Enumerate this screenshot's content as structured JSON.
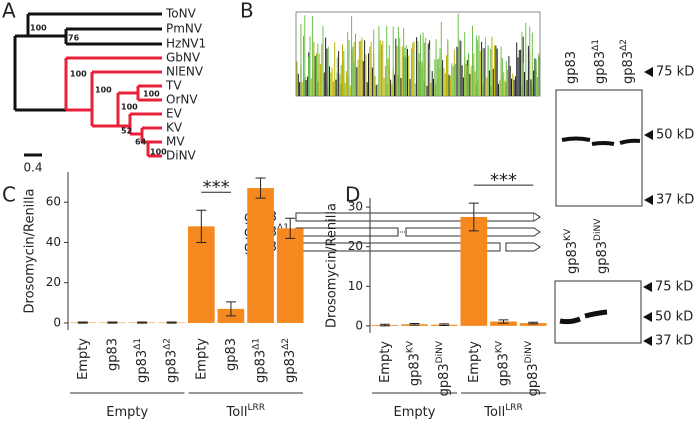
{
  "panels": {
    "a": "A",
    "b": "B",
    "c": "C",
    "d": "D"
  },
  "tree": {
    "taxa": [
      "ToNV",
      "PmNV",
      "HzNV1",
      "GbNV",
      "NlENV",
      "TV",
      "OrNV",
      "EV",
      "KV",
      "MV",
      "DiNV"
    ],
    "bootstrap": [
      "100",
      "76",
      "100",
      "100",
      "100",
      "100",
      "52",
      "64",
      "100"
    ],
    "scale": "0.4"
  },
  "alignment": {
    "constructs": [
      {
        "text": "gp83"
      },
      {
        "text": "gp83",
        "sup": "Δ1"
      },
      {
        "text": "gp83",
        "sup": "Δ2"
      }
    ]
  },
  "blot_b": {
    "lanes": [
      {
        "text": "gp83"
      },
      {
        "text": "gp83",
        "sup": "Δ1"
      },
      {
        "text": "gp83",
        "sup": "Δ2"
      }
    ],
    "markers": [
      "75 kD",
      "50 kD",
      "37 kD"
    ]
  },
  "blot_d": {
    "lanes": [
      {
        "text": "gp83",
        "sup": "KV"
      },
      {
        "text": "gp83",
        "sup": "DiNV"
      }
    ],
    "markers": [
      "75 kD",
      "50 kD",
      "37 kD"
    ]
  },
  "chart_data": [
    {
      "type": "bar",
      "ylabel": "Drosomycin/Renilla",
      "color": "#f5891f",
      "categories": [
        {
          "text": "Empty"
        },
        {
          "text": "gp83"
        },
        {
          "text": "gp83",
          "sup": "Δ1"
        },
        {
          "text": "gp83",
          "sup": "Δ2"
        },
        {
          "text": "Empty"
        },
        {
          "text": "gp83"
        },
        {
          "text": "gp83",
          "sup": "Δ1"
        },
        {
          "text": "gp83",
          "sup": "Δ2"
        }
      ],
      "values": [
        0.2,
        0.2,
        0.2,
        0.2,
        48,
        7,
        67,
        47
      ],
      "errors": [
        0.3,
        0.3,
        0.3,
        0.3,
        8,
        3.5,
        5,
        5
      ],
      "groups": [
        {
          "text": "Empty",
          "count": 4
        },
        {
          "text": "Toll",
          "sup": "LRR",
          "count": 4
        }
      ],
      "significance": {
        "label": "***",
        "from": 4,
        "to": 5
      },
      "ylim": [
        -3.5,
        75
      ],
      "yticks": [
        0,
        20,
        40,
        60
      ]
    },
    {
      "type": "bar",
      "ylabel": "Drosomycin/Renilla",
      "color": "#f5891f",
      "categories": [
        {
          "text": "Empty"
        },
        {
          "text": "gp83",
          "sup": "KV"
        },
        {
          "text": "gp83",
          "sup": "DiNV"
        },
        {
          "text": "Empty"
        },
        {
          "text": "gp83",
          "sup": "KV"
        },
        {
          "text": "gp83",
          "sup": "DiNV"
        }
      ],
      "values": [
        0.2,
        0.4,
        0.3,
        27.5,
        1.1,
        0.7
      ],
      "errors": [
        0.2,
        0.2,
        0.2,
        3.5,
        0.4,
        0.2
      ],
      "groups": [
        {
          "text": "Empty",
          "count": 3
        },
        {
          "text": "Toll",
          "sup": "LRR",
          "count": 3
        }
      ],
      "significance": {
        "label": "***",
        "from": 3,
        "to": 5
      },
      "ylim": [
        -1.8,
        32.3
      ],
      "yticks": [
        0,
        10,
        20,
        30
      ]
    }
  ]
}
